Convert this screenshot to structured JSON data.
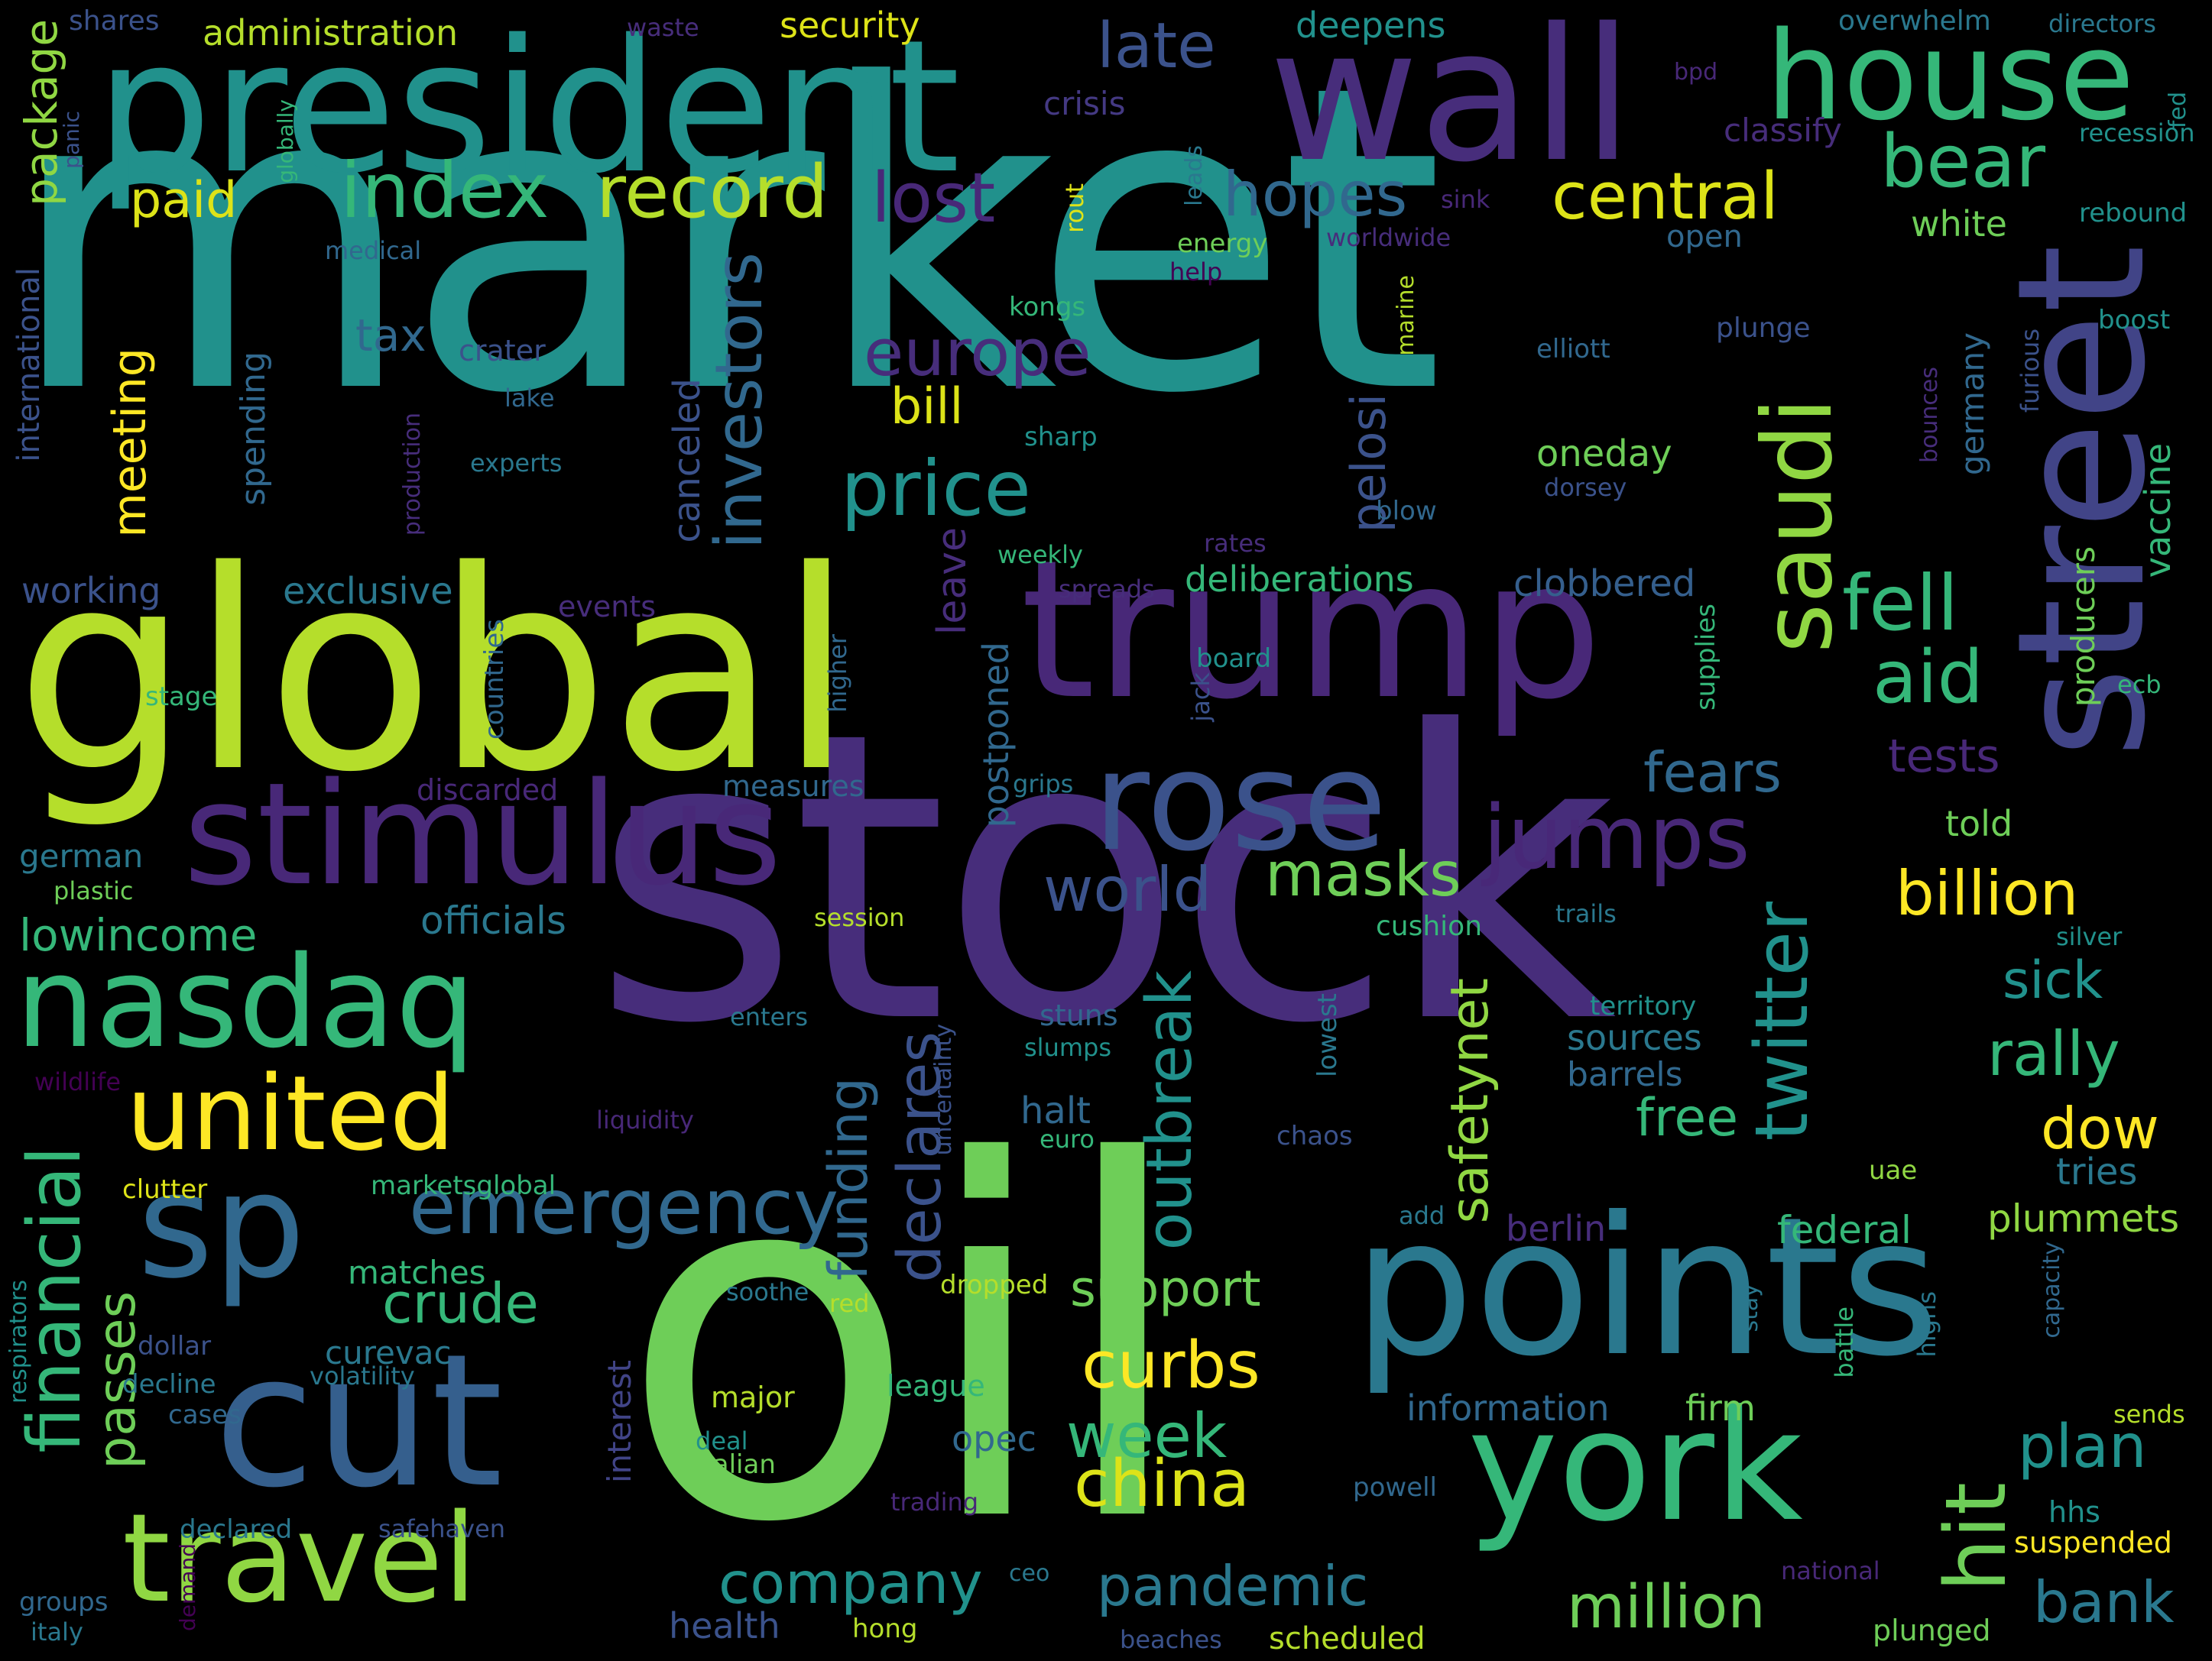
{
  "cloud": {
    "background": "#000000",
    "words": [
      {
        "text": "market",
        "color": "#21918c"
      },
      {
        "text": "stock",
        "color": "#472d7b"
      },
      {
        "text": "oil",
        "color": "#6ece58"
      },
      {
        "text": "global",
        "color": "#b5de2b"
      },
      {
        "text": "president",
        "color": "#21918c"
      },
      {
        "text": "trump",
        "color": "#482878"
      },
      {
        "text": "wall",
        "color": "#472d7b"
      },
      {
        "text": "house",
        "color": "#35b779"
      },
      {
        "text": "street",
        "color": "#414487"
      },
      {
        "text": "stimulus",
        "color": "#482878"
      },
      {
        "text": "points",
        "color": "#2a788e"
      },
      {
        "text": "cut",
        "color": "#355f8d"
      },
      {
        "text": "york",
        "color": "#35b779"
      },
      {
        "text": "rose",
        "color": "#3b528b"
      },
      {
        "text": "nasdaq",
        "color": "#35b779"
      },
      {
        "text": "sp",
        "color": "#31688e"
      },
      {
        "text": "united",
        "color": "#fde725"
      },
      {
        "text": "travel",
        "color": "#90d743"
      },
      {
        "text": "saudi",
        "color": "#90d743"
      },
      {
        "text": "index",
        "color": "#35b779"
      },
      {
        "text": "record",
        "color": "#b5de2b"
      },
      {
        "text": "emergency",
        "color": "#31688e"
      },
      {
        "text": "jumps",
        "color": "#482878"
      },
      {
        "text": "fell",
        "color": "#35b779"
      },
      {
        "text": "hit",
        "color": "#6ece58"
      },
      {
        "text": "twitter",
        "color": "#21918c"
      },
      {
        "text": "financial",
        "color": "#35b779"
      },
      {
        "text": "late",
        "color": "#3b528b"
      },
      {
        "text": "bear",
        "color": "#35b779"
      },
      {
        "text": "central",
        "color": "#dde318"
      },
      {
        "text": "hopes",
        "color": "#31688e"
      },
      {
        "text": "lost",
        "color": "#482878"
      },
      {
        "text": "price",
        "color": "#21918c"
      },
      {
        "text": "europe",
        "color": "#472d7b"
      },
      {
        "text": "investors",
        "color": "#31688e"
      },
      {
        "text": "billion",
        "color": "#fde725"
      },
      {
        "text": "china",
        "color": "#dde318"
      },
      {
        "text": "week",
        "color": "#35b779"
      },
      {
        "text": "curbs",
        "color": "#fde725"
      },
      {
        "text": "world",
        "color": "#3b528b"
      },
      {
        "text": "masks",
        "color": "#6ece58"
      },
      {
        "text": "aid",
        "color": "#35b779"
      },
      {
        "text": "fears",
        "color": "#31688e"
      },
      {
        "text": "declares",
        "color": "#3b528b"
      },
      {
        "text": "outbreak",
        "color": "#21918c"
      },
      {
        "text": "rally",
        "color": "#35b779"
      },
      {
        "text": "dow",
        "color": "#fde725"
      },
      {
        "text": "plan",
        "color": "#21918c"
      },
      {
        "text": "million",
        "color": "#6ece58"
      },
      {
        "text": "pandemic",
        "color": "#2a788e"
      },
      {
        "text": "company",
        "color": "#21918c"
      },
      {
        "text": "crude",
        "color": "#35b779"
      },
      {
        "text": "support",
        "color": "#6ece58"
      },
      {
        "text": "bank",
        "color": "#2a788e"
      },
      {
        "text": "passes",
        "color": "#6ece58"
      },
      {
        "text": "package",
        "color": "#90d743"
      },
      {
        "text": "paid",
        "color": "#dde318"
      },
      {
        "text": "meeting",
        "color": "#fde725"
      },
      {
        "text": "funding",
        "color": "#31688e"
      },
      {
        "text": "safetynet",
        "color": "#90d743"
      },
      {
        "text": "free",
        "color": "#35b779"
      },
      {
        "text": "sick",
        "color": "#21918c"
      },
      {
        "text": "pelosi",
        "color": "#3b528b"
      },
      {
        "text": "bill",
        "color": "#dde318"
      },
      {
        "text": "tax",
        "color": "#31688e"
      },
      {
        "text": "lowincome",
        "color": "#35b779"
      },
      {
        "text": "officials",
        "color": "#2a788e"
      },
      {
        "text": "exclusive",
        "color": "#2a788e"
      },
      {
        "text": "working",
        "color": "#3b528b"
      },
      {
        "text": "deliberations",
        "color": "#35b779"
      },
      {
        "text": "clobbered",
        "color": "#355f8d"
      },
      {
        "text": "oneday",
        "color": "#6ece58"
      },
      {
        "text": "tests",
        "color": "#482878"
      },
      {
        "text": "told",
        "color": "#6ece58"
      },
      {
        "text": "white",
        "color": "#6ece58"
      },
      {
        "text": "canceled",
        "color": "#3b528b"
      },
      {
        "text": "leave",
        "color": "#472d7b"
      },
      {
        "text": "postponed",
        "color": "#31688e"
      },
      {
        "text": "administration",
        "color": "#b5de2b"
      },
      {
        "text": "security",
        "color": "#dde318"
      },
      {
        "text": "deepens",
        "color": "#21918c"
      },
      {
        "text": "crisis",
        "color": "#443983"
      },
      {
        "text": "classify",
        "color": "#472d7b"
      },
      {
        "text": "overwhelm",
        "color": "#2a788e"
      },
      {
        "text": "directors",
        "color": "#2a788e"
      },
      {
        "text": "recession",
        "color": "#21918c"
      },
      {
        "text": "rebound",
        "color": "#21918c"
      },
      {
        "text": "shares",
        "color": "#3b528b"
      },
      {
        "text": "waste",
        "color": "#472d7b"
      },
      {
        "text": "spending",
        "color": "#31688e"
      },
      {
        "text": "international",
        "color": "#3b528b"
      },
      {
        "text": "crater",
        "color": "#3b528b"
      },
      {
        "text": "lake",
        "color": "#31688e"
      },
      {
        "text": "experts",
        "color": "#2a788e"
      },
      {
        "text": "events",
        "color": "#472d7b"
      },
      {
        "text": "stage",
        "color": "#35b779"
      },
      {
        "text": "countries",
        "color": "#31688e"
      },
      {
        "text": "discarded",
        "color": "#482878"
      },
      {
        "text": "measures",
        "color": "#31688e"
      },
      {
        "text": "grips",
        "color": "#2a788e"
      },
      {
        "text": "german",
        "color": "#2a788e"
      },
      {
        "text": "plastic",
        "color": "#6ece58"
      },
      {
        "text": "session",
        "color": "#b5de2b"
      },
      {
        "text": "enters",
        "color": "#2a788e"
      },
      {
        "text": "stuns",
        "color": "#31688e"
      },
      {
        "text": "slumps",
        "color": "#21918c"
      },
      {
        "text": "halt",
        "color": "#31688e"
      },
      {
        "text": "euro",
        "color": "#35b779"
      },
      {
        "text": "chaos",
        "color": "#3b528b"
      },
      {
        "text": "liquidity",
        "color": "#482878"
      },
      {
        "text": "wildlife",
        "color": "#440154"
      },
      {
        "text": "clutter",
        "color": "#dde318"
      },
      {
        "text": "marketsglobal",
        "color": "#35b779"
      },
      {
        "text": "matches",
        "color": "#35b779"
      },
      {
        "text": "curevac",
        "color": "#2a788e"
      },
      {
        "text": "volatility",
        "color": "#2a788e"
      },
      {
        "text": "decline",
        "color": "#2a788e"
      },
      {
        "text": "cases",
        "color": "#31688e"
      },
      {
        "text": "dollar",
        "color": "#3b528b"
      },
      {
        "text": "soothe",
        "color": "#2a788e"
      },
      {
        "text": "red",
        "color": "#b5de2b"
      },
      {
        "text": "dropped",
        "color": "#b5de2b"
      },
      {
        "text": "league",
        "color": "#35b779"
      },
      {
        "text": "interest",
        "color": "#414487"
      },
      {
        "text": "major",
        "color": "#b5de2b"
      },
      {
        "text": "deal",
        "color": "#21918c"
      },
      {
        "text": "italian",
        "color": "#6ece58"
      },
      {
        "text": "trading",
        "color": "#482878"
      },
      {
        "text": "declared",
        "color": "#2a788e"
      },
      {
        "text": "safehaven",
        "color": "#3b528b"
      },
      {
        "text": "demand",
        "color": "#440154"
      },
      {
        "text": "groups",
        "color": "#31688e"
      },
      {
        "text": "italy",
        "color": "#2a788e"
      },
      {
        "text": "health",
        "color": "#3b528b"
      },
      {
        "text": "hong",
        "color": "#b5de2b"
      },
      {
        "text": "beaches",
        "color": "#3b528b"
      },
      {
        "text": "scheduled",
        "color": "#b5de2b"
      },
      {
        "text": "plunged",
        "color": "#6ece58"
      },
      {
        "text": "suspended",
        "color": "#fde725"
      },
      {
        "text": "hhs",
        "color": "#21918c"
      },
      {
        "text": "national",
        "color": "#482878"
      },
      {
        "text": "ceo",
        "color": "#2a788e"
      },
      {
        "text": "powell",
        "color": "#31688e"
      },
      {
        "text": "information",
        "color": "#31688e"
      },
      {
        "text": "firm",
        "color": "#6ece58"
      },
      {
        "text": "opec",
        "color": "#31688e"
      },
      {
        "text": "berlin",
        "color": "#472d7b"
      },
      {
        "text": "federal",
        "color": "#35b779"
      },
      {
        "text": "plummets",
        "color": "#90d743"
      },
      {
        "text": "tries",
        "color": "#2a788e"
      },
      {
        "text": "uae",
        "color": "#90d743"
      },
      {
        "text": "add",
        "color": "#2a788e"
      },
      {
        "text": "cushion",
        "color": "#35b779"
      },
      {
        "text": "trails",
        "color": "#2a788e"
      },
      {
        "text": "silver",
        "color": "#21918c"
      },
      {
        "text": "territory",
        "color": "#21918c"
      },
      {
        "text": "sources",
        "color": "#2a788e"
      },
      {
        "text": "barrels",
        "color": "#31688e"
      },
      {
        "text": "sends",
        "color": "#b5de2b"
      },
      {
        "text": "battle",
        "color": "#35b779"
      },
      {
        "text": "highs",
        "color": "#2a788e"
      },
      {
        "text": "stay",
        "color": "#2a788e"
      },
      {
        "text": "capacity",
        "color": "#31688e"
      },
      {
        "text": "respirators",
        "color": "#21918c"
      },
      {
        "text": "uncertainty",
        "color": "#3b528b"
      },
      {
        "text": "lowest",
        "color": "#2a788e"
      },
      {
        "text": "vaccine",
        "color": "#35b779"
      },
      {
        "text": "producers",
        "color": "#6ece58"
      },
      {
        "text": "germany",
        "color": "#31688e"
      },
      {
        "text": "furious",
        "color": "#3b528b"
      },
      {
        "text": "bounces",
        "color": "#472d7b"
      },
      {
        "text": "boost",
        "color": "#21918c"
      },
      {
        "text": "ecb",
        "color": "#35b779"
      },
      {
        "text": "supplies",
        "color": "#35b779"
      },
      {
        "text": "higher",
        "color": "#31688e"
      },
      {
        "text": "jack",
        "color": "#3b528b"
      },
      {
        "text": "board",
        "color": "#21918c"
      },
      {
        "text": "spreads",
        "color": "#472d7b"
      },
      {
        "text": "rates",
        "color": "#472d7b"
      },
      {
        "text": "weekly",
        "color": "#35b779"
      },
      {
        "text": "blow",
        "color": "#31688e"
      },
      {
        "text": "dorsey",
        "color": "#3b528b"
      },
      {
        "text": "elliott",
        "color": "#31688e"
      },
      {
        "text": "plunge",
        "color": "#3b528b"
      },
      {
        "text": "marine",
        "color": "#b5de2b"
      },
      {
        "text": "kongs",
        "color": "#35b779"
      },
      {
        "text": "sharp",
        "color": "#21918c"
      },
      {
        "text": "production",
        "color": "#472d7b"
      },
      {
        "text": "energy",
        "color": "#6ece58"
      },
      {
        "text": "help",
        "color": "#440154"
      },
      {
        "text": "worldwide",
        "color": "#472d7b"
      },
      {
        "text": "open",
        "color": "#31688e"
      },
      {
        "text": "sink",
        "color": "#482878"
      },
      {
        "text": "leads",
        "color": "#2a788e"
      },
      {
        "text": "rout",
        "color": "#dde318"
      },
      {
        "text": "medical",
        "color": "#31688e"
      },
      {
        "text": "globally",
        "color": "#35b779"
      },
      {
        "text": "panic",
        "color": "#3b528b"
      },
      {
        "text": "bpd",
        "color": "#482878"
      },
      {
        "text": "fed",
        "color": "#21918c"
      }
    ]
  }
}
